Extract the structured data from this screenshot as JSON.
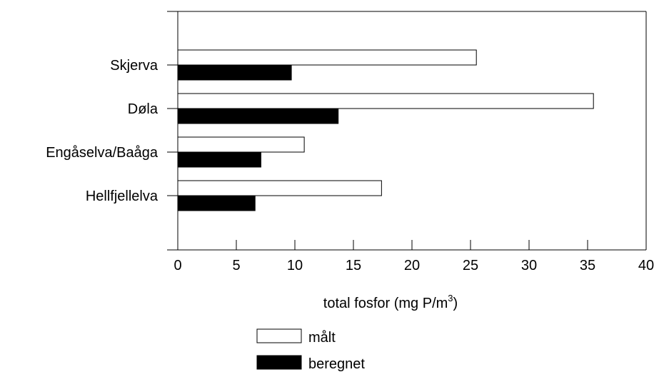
{
  "chart_data": {
    "type": "bar",
    "orientation": "horizontal",
    "categories": [
      "Skjerva",
      "Døla",
      "Engåselva/Baåga",
      "Hellfjellelva"
    ],
    "series": [
      {
        "name": "målt",
        "values": [
          25.5,
          35.5,
          10.8,
          17.4
        ],
        "color": "#ffffff",
        "stroke": "#000000"
      },
      {
        "name": "beregnet",
        "values": [
          9.7,
          13.7,
          7.1,
          6.6
        ],
        "color": "#000000",
        "stroke": "#000000"
      }
    ],
    "xlabel": "total fosfor (mg P/m",
    "xlabel_sup": "3",
    "xlabel_end": ")",
    "ylabel": "",
    "title": "",
    "xlim": [
      0,
      40
    ],
    "xticks": [
      0,
      5,
      10,
      15,
      20,
      25,
      30,
      35,
      40
    ],
    "legend_position": "bottom-center",
    "grid": false
  }
}
